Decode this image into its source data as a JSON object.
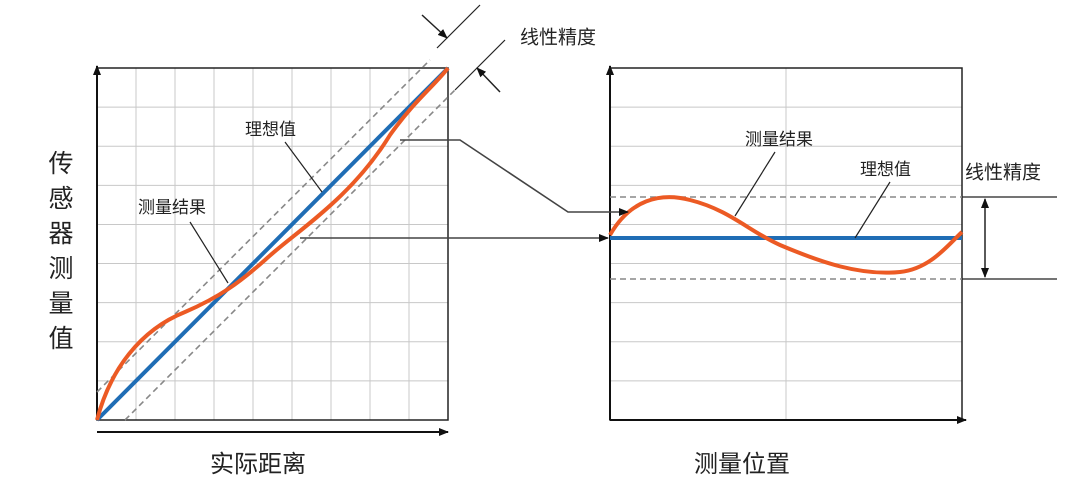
{
  "left_panel": {
    "y_axis_label": "传感器测量值",
    "x_axis_label": "实际距离",
    "ideal_label": "理想值",
    "measured_label": "测量结果",
    "linearity_label": "线性精度"
  },
  "right_panel": {
    "x_axis_label": "测量位置",
    "ideal_label": "理想值",
    "measured_label": "测量结果",
    "linearity_label": "线性精度"
  }
}
